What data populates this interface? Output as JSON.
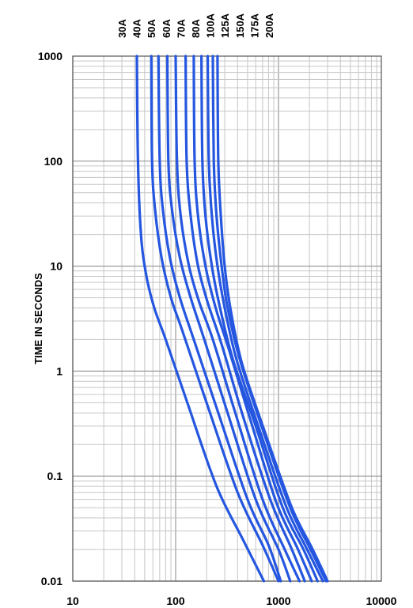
{
  "chart_data": {
    "type": "line",
    "title": "",
    "xlabel": "",
    "ylabel": "TIME IN SECONDS",
    "x_scale": "log",
    "y_scale": "log",
    "xlim": [
      10,
      10000
    ],
    "ylim": [
      0.01,
      1000
    ],
    "x_ticks": [
      "10",
      "100",
      "1000",
      "10000"
    ],
    "y_ticks": [
      "0.01",
      "0.1",
      "1",
      "10",
      "100",
      "1000"
    ],
    "grid": true,
    "legend": "top-labels",
    "line_color": "#2456e0",
    "series": [
      {
        "name": "30A",
        "points": [
          [
            42,
            1000
          ],
          [
            43,
            100
          ],
          [
            46,
            20
          ],
          [
            52,
            8
          ],
          [
            62,
            4
          ],
          [
            80,
            2
          ],
          [
            130,
            0.5
          ],
          [
            250,
            0.08
          ],
          [
            450,
            0.025
          ],
          [
            720,
            0.01
          ]
        ]
      },
      {
        "name": "40A",
        "points": [
          [
            58,
            1000
          ],
          [
            59,
            100
          ],
          [
            63,
            35
          ],
          [
            73,
            12
          ],
          [
            90,
            5
          ],
          [
            115,
            2.5
          ],
          [
            200,
            0.5
          ],
          [
            400,
            0.07
          ],
          [
            700,
            0.022
          ],
          [
            1000,
            0.01
          ]
        ]
      },
      {
        "name": "50A",
        "points": [
          [
            68,
            1000
          ],
          [
            70,
            100
          ],
          [
            75,
            35
          ],
          [
            88,
            12
          ],
          [
            110,
            5
          ],
          [
            150,
            2
          ],
          [
            260,
            0.4
          ],
          [
            500,
            0.06
          ],
          [
            800,
            0.022
          ],
          [
            1050,
            0.01
          ]
        ]
      },
      {
        "name": "60A",
        "points": [
          [
            83,
            1000
          ],
          [
            85,
            100
          ],
          [
            92,
            35
          ],
          [
            110,
            12
          ],
          [
            140,
            5
          ],
          [
            190,
            2
          ],
          [
            320,
            0.4
          ],
          [
            600,
            0.06
          ],
          [
            1000,
            0.02
          ],
          [
            1300,
            0.01
          ]
        ]
      },
      {
        "name": "70A",
        "points": [
          [
            100,
            1000
          ],
          [
            103,
            100
          ],
          [
            112,
            30
          ],
          [
            135,
            10
          ],
          [
            170,
            4.5
          ],
          [
            230,
            2
          ],
          [
            380,
            0.4
          ],
          [
            700,
            0.06
          ],
          [
            1150,
            0.02
          ],
          [
            1600,
            0.01
          ]
        ]
      },
      {
        "name": "80A",
        "points": [
          [
            125,
            1000
          ],
          [
            128,
            100
          ],
          [
            140,
            30
          ],
          [
            165,
            10
          ],
          [
            205,
            4.5
          ],
          [
            280,
            1.8
          ],
          [
            460,
            0.35
          ],
          [
            830,
            0.06
          ],
          [
            1350,
            0.02
          ],
          [
            1800,
            0.01
          ]
        ]
      },
      {
        "name": "100A",
        "points": [
          [
            150,
            1000
          ],
          [
            153,
            100
          ],
          [
            165,
            30
          ],
          [
            195,
            10
          ],
          [
            245,
            4
          ],
          [
            330,
            1.6
          ],
          [
            540,
            0.33
          ],
          [
            960,
            0.055
          ],
          [
            1550,
            0.02
          ],
          [
            2100,
            0.01
          ]
        ]
      },
      {
        "name": "125A",
        "points": [
          [
            178,
            1000
          ],
          [
            182,
            100
          ],
          [
            195,
            30
          ],
          [
            225,
            10
          ],
          [
            270,
            4
          ],
          [
            360,
            1.3
          ],
          [
            600,
            0.3
          ],
          [
            1100,
            0.05
          ],
          [
            1750,
            0.02
          ],
          [
            2400,
            0.01
          ]
        ]
      },
      {
        "name": "150A",
        "points": [
          [
            205,
            1000
          ],
          [
            210,
            100
          ],
          [
            225,
            30
          ],
          [
            255,
            10
          ],
          [
            300,
            4
          ],
          [
            390,
            1.3
          ],
          [
            650,
            0.28
          ],
          [
            1200,
            0.05
          ],
          [
            1900,
            0.02
          ],
          [
            2700,
            0.01
          ]
        ]
      },
      {
        "name": "175A",
        "points": [
          [
            230,
            1000
          ],
          [
            235,
            100
          ],
          [
            250,
            30
          ],
          [
            280,
            10
          ],
          [
            320,
            4
          ],
          [
            420,
            1.3
          ],
          [
            700,
            0.28
          ],
          [
            1300,
            0.05
          ],
          [
            2050,
            0.02
          ],
          [
            2900,
            0.01
          ]
        ]
      },
      {
        "name": "200A",
        "points": [
          [
            255,
            1000
          ],
          [
            260,
            100
          ],
          [
            275,
            30
          ],
          [
            300,
            10
          ],
          [
            340,
            4
          ],
          [
            440,
            1.2
          ],
          [
            740,
            0.26
          ],
          [
            1350,
            0.05
          ],
          [
            2150,
            0.02
          ],
          [
            3000,
            0.01
          ]
        ]
      }
    ]
  }
}
